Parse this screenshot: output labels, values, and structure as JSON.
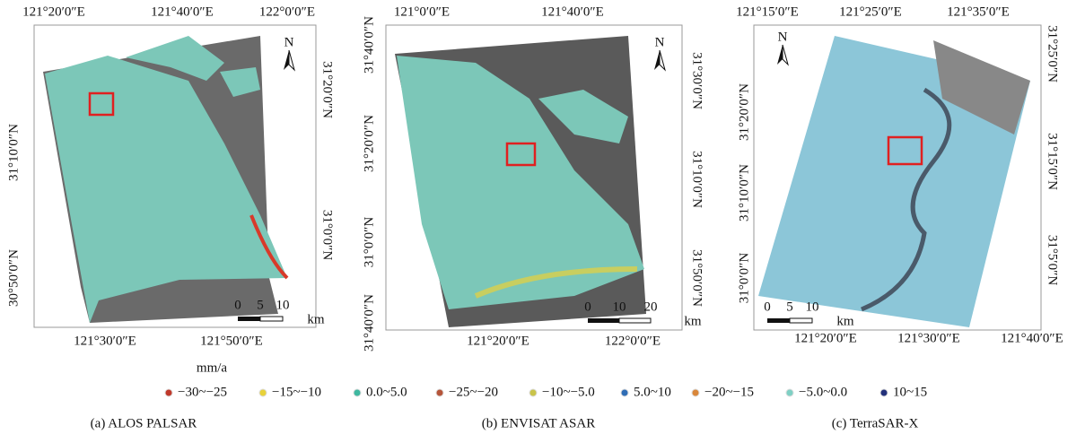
{
  "panels": [
    {
      "caption": "(a) ALOS PALSAR",
      "top_labels": [
        "121°20′0″E",
        "121°40′0″E",
        "122°0′0″E"
      ],
      "bottom_labels": [
        "121°30′0″E",
        "121°50′0″E"
      ],
      "left_labels": [
        "31°10′0″N",
        "30°50′0″N"
      ],
      "right_labels": [
        "31°20′0″N",
        "31°0′0″N"
      ],
      "north": "N",
      "scale_labels": [
        "0",
        "5",
        "10",
        "km"
      ]
    },
    {
      "caption": "(b) ENVISAT ASAR",
      "top_labels": [
        "121°0′0″E",
        "121°40′0″E"
      ],
      "bottom_labels": [
        "121°20′0″E",
        "122°0′0″E"
      ],
      "left_labels": [
        "31°40′0″N",
        "31°20′0″N",
        "31°0′0″N",
        "31°40′0″N"
      ],
      "right_labels": [
        "31°30′0″N",
        "31°10′0″N",
        "31°50′0″N"
      ],
      "north": "N",
      "scale_labels": [
        "0",
        "10",
        "20",
        "km"
      ]
    },
    {
      "caption": "(c) TerraSAR-X",
      "top_labels": [
        "121°15′0″E",
        "121°25′0″E",
        "121°35′0″E"
      ],
      "bottom_labels": [
        "121°20′0″E",
        "121°30′0″E",
        "121°40′0″E"
      ],
      "left_labels": [
        "31°20′0″N",
        "31°10′0″N",
        "31°0′0″N"
      ],
      "right_labels": [
        "31°25′0″N",
        "31°15′0″N",
        "31°5′0″N"
      ],
      "north": "N",
      "scale_labels": [
        "0",
        "5",
        "10",
        "km"
      ]
    }
  ],
  "legend": {
    "unit": "mm/a",
    "items": [
      {
        "label": "−30~−25",
        "color": "#c0392b"
      },
      {
        "label": "−15~−10",
        "color": "#e8d23a"
      },
      {
        "label": "0.0~5.0",
        "color": "#3fb8a0"
      },
      {
        "label": "−25~−20",
        "color": "#b5553a"
      },
      {
        "label": "−10~−5.0",
        "color": "#c9c44a"
      },
      {
        "label": "5.0~10",
        "color": "#2f6db5"
      },
      {
        "label": "−20~−15",
        "color": "#d9873a"
      },
      {
        "label": "−5.0~0.0",
        "color": "#7fd0c4"
      },
      {
        "label": "10~15",
        "color": "#22307a"
      }
    ]
  }
}
